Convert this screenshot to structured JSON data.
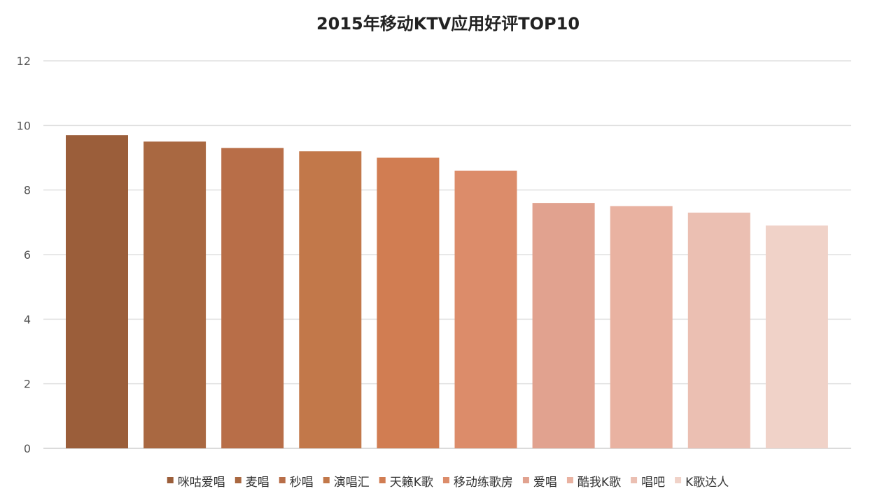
{
  "chart_data": {
    "type": "bar",
    "title": "2015年移动KTV应用好评TOP10",
    "xlabel": "",
    "ylabel": "",
    "categories": [
      "咪咕爱唱",
      "麦唱",
      "秒唱",
      "演唱汇",
      "天籁K歌",
      "移动练歌房",
      "爱唱",
      "酷我K歌",
      "唱吧",
      "K歌达人"
    ],
    "values": [
      9.7,
      9.5,
      9.3,
      9.2,
      9.0,
      8.6,
      7.6,
      7.5,
      7.3,
      6.9
    ],
    "colors": [
      "#9b5e3a",
      "#a96841",
      "#b86e48",
      "#c2784a",
      "#d17d52",
      "#dc8c6a",
      "#e1a28f",
      "#e9b2a1",
      "#ebbfb2",
      "#f0d2c8"
    ],
    "ylim": [
      0,
      12
    ],
    "yticks": [
      "0",
      "2",
      "4",
      "6",
      "8",
      "10",
      "12"
    ],
    "grid": true,
    "legend": "bottom"
  }
}
